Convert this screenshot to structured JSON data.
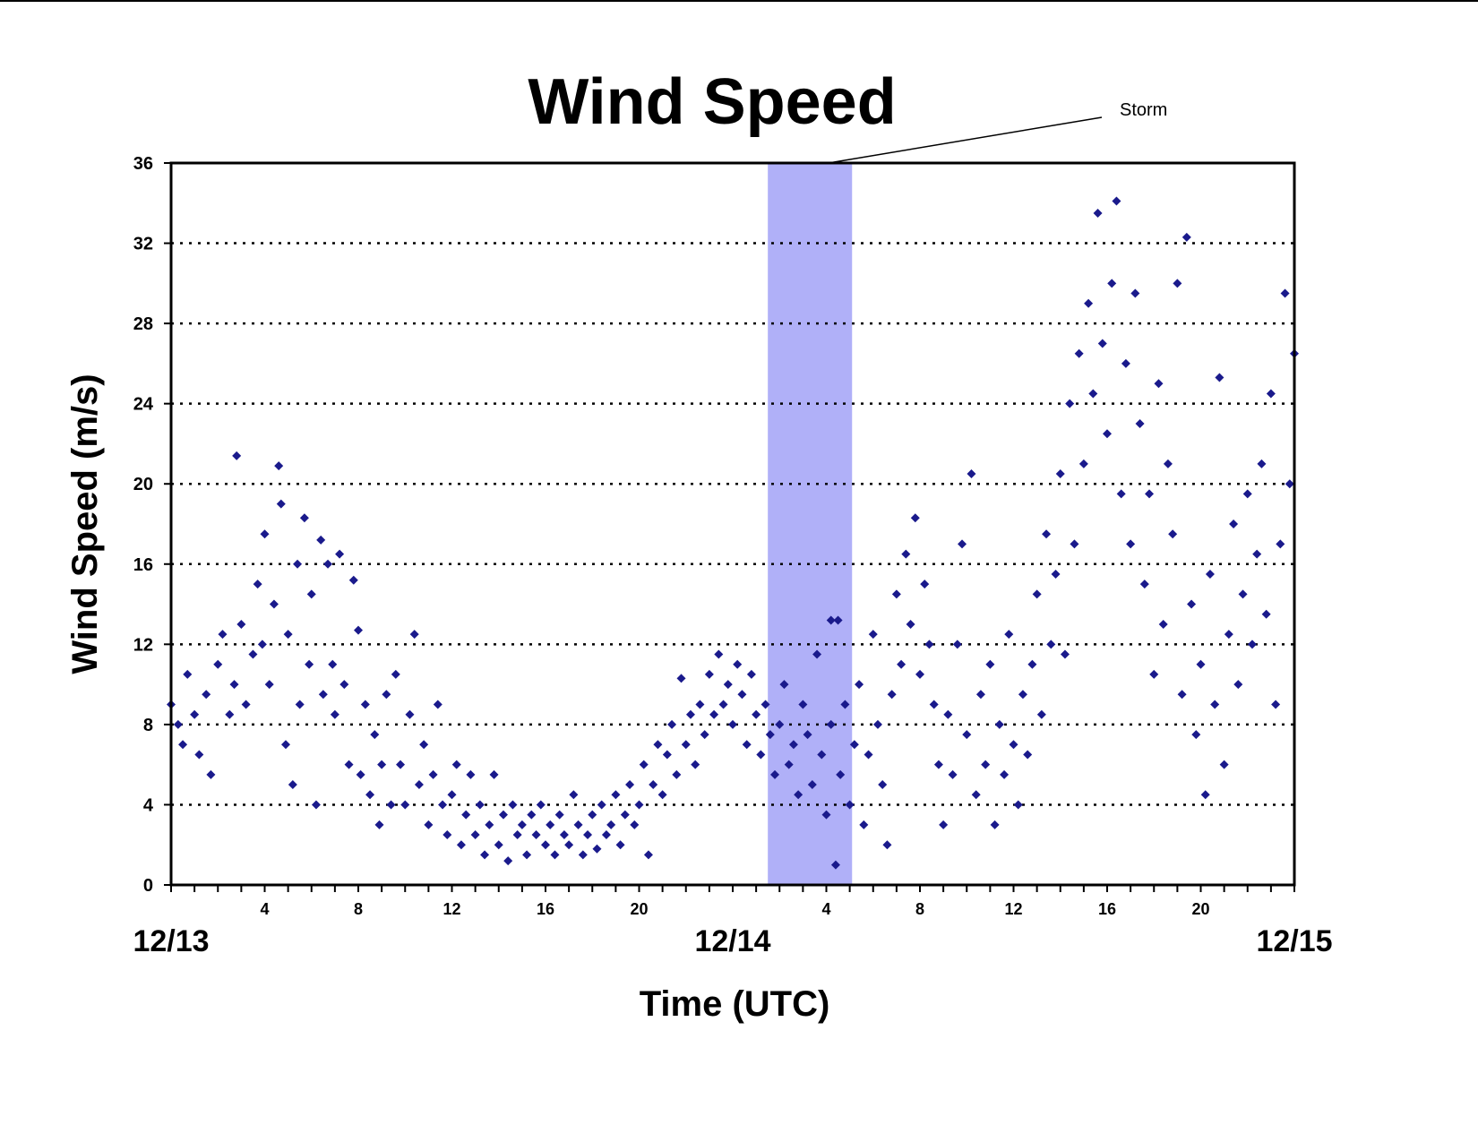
{
  "chart_data": {
    "type": "scatter",
    "title": "Wind Speed",
    "xlabel": "Time (UTC)",
    "ylabel": "Wind Speed (m/s)",
    "ylim": [
      0,
      36
    ],
    "yticks": [
      0,
      4,
      8,
      12,
      16,
      20,
      24,
      28,
      32,
      36
    ],
    "xlim_hours": [
      0,
      48
    ],
    "hour_ticks": [
      {
        "hour": 4,
        "label": "4"
      },
      {
        "hour": 8,
        "label": "8"
      },
      {
        "hour": 12,
        "label": "12"
      },
      {
        "hour": 16,
        "label": "16"
      },
      {
        "hour": 20,
        "label": "20"
      },
      {
        "hour": 28,
        "label": "4"
      },
      {
        "hour": 32,
        "label": "8"
      },
      {
        "hour": 36,
        "label": "12"
      },
      {
        "hour": 40,
        "label": "16"
      },
      {
        "hour": 44,
        "label": "20"
      }
    ],
    "date_labels": [
      {
        "hour": 0,
        "label": "12/13"
      },
      {
        "hour": 24,
        "label": "12/14"
      },
      {
        "hour": 48,
        "label": "12/15"
      }
    ],
    "grid": "horizontal dotted",
    "marker_color": "#1a1a8c",
    "annotation": {
      "text": "Storm",
      "span_hours": [
        25.5,
        29.1
      ],
      "color": "#b0b0f8"
    },
    "series": [
      {
        "x_unit": "hours since 12/13 00:00 UTC",
        "points": [
          [
            0.0,
            9.0
          ],
          [
            0.3,
            8.0
          ],
          [
            0.5,
            7.0
          ],
          [
            0.7,
            10.5
          ],
          [
            1.0,
            8.5
          ],
          [
            1.2,
            6.5
          ],
          [
            1.5,
            9.5
          ],
          [
            1.7,
            5.5
          ],
          [
            2.0,
            11.0
          ],
          [
            2.2,
            12.5
          ],
          [
            2.5,
            8.5
          ],
          [
            2.7,
            10.0
          ],
          [
            2.8,
            21.4
          ],
          [
            3.0,
            13.0
          ],
          [
            3.2,
            9.0
          ],
          [
            3.5,
            11.5
          ],
          [
            3.7,
            15.0
          ],
          [
            3.9,
            12.0
          ],
          [
            4.0,
            17.5
          ],
          [
            4.2,
            10.0
          ],
          [
            4.4,
            14.0
          ],
          [
            4.6,
            20.9
          ],
          [
            4.7,
            19.0
          ],
          [
            4.9,
            7.0
          ],
          [
            5.0,
            12.5
          ],
          [
            5.2,
            5.0
          ],
          [
            5.4,
            16.0
          ],
          [
            5.5,
            9.0
          ],
          [
            5.7,
            18.3
          ],
          [
            5.9,
            11.0
          ],
          [
            6.0,
            14.5
          ],
          [
            6.2,
            4.0
          ],
          [
            6.4,
            17.2
          ],
          [
            6.5,
            9.5
          ],
          [
            6.7,
            16.0
          ],
          [
            6.9,
            11.0
          ],
          [
            7.0,
            8.5
          ],
          [
            7.2,
            16.5
          ],
          [
            7.4,
            10.0
          ],
          [
            7.6,
            6.0
          ],
          [
            7.8,
            15.2
          ],
          [
            8.0,
            12.7
          ],
          [
            8.1,
            5.5
          ],
          [
            8.3,
            9.0
          ],
          [
            8.5,
            4.5
          ],
          [
            8.7,
            7.5
          ],
          [
            8.9,
            3.0
          ],
          [
            9.0,
            6.0
          ],
          [
            9.2,
            9.5
          ],
          [
            9.4,
            4.0
          ],
          [
            9.6,
            10.5
          ],
          [
            9.8,
            6.0
          ],
          [
            10.0,
            4.0
          ],
          [
            10.2,
            8.5
          ],
          [
            10.4,
            12.5
          ],
          [
            10.6,
            5.0
          ],
          [
            10.8,
            7.0
          ],
          [
            11.0,
            3.0
          ],
          [
            11.2,
            5.5
          ],
          [
            11.4,
            9.0
          ],
          [
            11.6,
            4.0
          ],
          [
            11.8,
            2.5
          ],
          [
            12.0,
            4.5
          ],
          [
            12.2,
            6.0
          ],
          [
            12.4,
            2.0
          ],
          [
            12.6,
            3.5
          ],
          [
            12.8,
            5.5
          ],
          [
            13.0,
            2.5
          ],
          [
            13.2,
            4.0
          ],
          [
            13.4,
            1.5
          ],
          [
            13.6,
            3.0
          ],
          [
            13.8,
            5.5
          ],
          [
            14.0,
            2.0
          ],
          [
            14.2,
            3.5
          ],
          [
            14.4,
            1.2
          ],
          [
            14.6,
            4.0
          ],
          [
            14.8,
            2.5
          ],
          [
            15.0,
            3.0
          ],
          [
            15.2,
            1.5
          ],
          [
            15.4,
            3.5
          ],
          [
            15.6,
            2.5
          ],
          [
            15.8,
            4.0
          ],
          [
            16.0,
            2.0
          ],
          [
            16.2,
            3.0
          ],
          [
            16.4,
            1.5
          ],
          [
            16.6,
            3.5
          ],
          [
            16.8,
            2.5
          ],
          [
            17.0,
            2.0
          ],
          [
            17.2,
            4.5
          ],
          [
            17.4,
            3.0
          ],
          [
            17.6,
            1.5
          ],
          [
            17.8,
            2.5
          ],
          [
            18.0,
            3.5
          ],
          [
            18.2,
            1.8
          ],
          [
            18.4,
            4.0
          ],
          [
            18.6,
            2.5
          ],
          [
            18.8,
            3.0
          ],
          [
            19.0,
            4.5
          ],
          [
            19.2,
            2.0
          ],
          [
            19.4,
            3.5
          ],
          [
            19.6,
            5.0
          ],
          [
            19.8,
            3.0
          ],
          [
            20.0,
            4.0
          ],
          [
            20.2,
            6.0
          ],
          [
            20.4,
            1.5
          ],
          [
            20.6,
            5.0
          ],
          [
            20.8,
            7.0
          ],
          [
            21.0,
            4.5
          ],
          [
            21.2,
            6.5
          ],
          [
            21.4,
            8.0
          ],
          [
            21.6,
            5.5
          ],
          [
            21.8,
            10.3
          ],
          [
            22.0,
            7.0
          ],
          [
            22.2,
            8.5
          ],
          [
            22.4,
            6.0
          ],
          [
            22.6,
            9.0
          ],
          [
            22.8,
            7.5
          ],
          [
            23.0,
            10.5
          ],
          [
            23.2,
            8.5
          ],
          [
            23.4,
            11.5
          ],
          [
            23.6,
            9.0
          ],
          [
            23.8,
            10.0
          ],
          [
            24.0,
            8.0
          ],
          [
            24.2,
            11.0
          ],
          [
            24.4,
            9.5
          ],
          [
            24.6,
            7.0
          ],
          [
            24.8,
            10.5
          ],
          [
            25.0,
            8.5
          ],
          [
            25.2,
            6.5
          ],
          [
            25.4,
            9.0
          ],
          [
            25.6,
            7.5
          ],
          [
            25.8,
            5.5
          ],
          [
            26.0,
            8.0
          ],
          [
            26.2,
            10.0
          ],
          [
            26.4,
            6.0
          ],
          [
            26.6,
            7.0
          ],
          [
            26.8,
            4.5
          ],
          [
            27.0,
            9.0
          ],
          [
            27.2,
            7.5
          ],
          [
            27.4,
            5.0
          ],
          [
            27.6,
            11.5
          ],
          [
            27.8,
            6.5
          ],
          [
            28.0,
            3.5
          ],
          [
            28.2,
            8.0
          ],
          [
            28.2,
            13.2
          ],
          [
            28.5,
            13.2
          ],
          [
            28.4,
            1.0
          ],
          [
            28.6,
            5.5
          ],
          [
            28.8,
            9.0
          ],
          [
            29.0,
            4.0
          ],
          [
            29.2,
            7.0
          ],
          [
            29.4,
            10.0
          ],
          [
            29.6,
            3.0
          ],
          [
            29.8,
            6.5
          ],
          [
            30.0,
            12.5
          ],
          [
            30.2,
            8.0
          ],
          [
            30.4,
            5.0
          ],
          [
            30.6,
            2.0
          ],
          [
            30.8,
            9.5
          ],
          [
            31.0,
            14.5
          ],
          [
            31.2,
            11.0
          ],
          [
            31.4,
            16.5
          ],
          [
            31.6,
            13.0
          ],
          [
            31.8,
            18.3
          ],
          [
            32.0,
            10.5
          ],
          [
            32.2,
            15.0
          ],
          [
            32.4,
            12.0
          ],
          [
            32.6,
            9.0
          ],
          [
            32.8,
            6.0
          ],
          [
            33.0,
            3.0
          ],
          [
            33.2,
            8.5
          ],
          [
            33.4,
            5.5
          ],
          [
            33.6,
            12.0
          ],
          [
            33.8,
            17.0
          ],
          [
            34.0,
            7.5
          ],
          [
            34.2,
            20.5
          ],
          [
            34.4,
            4.5
          ],
          [
            34.6,
            9.5
          ],
          [
            34.8,
            6.0
          ],
          [
            35.0,
            11.0
          ],
          [
            35.2,
            3.0
          ],
          [
            35.4,
            8.0
          ],
          [
            35.6,
            5.5
          ],
          [
            35.8,
            12.5
          ],
          [
            36.0,
            7.0
          ],
          [
            36.2,
            4.0
          ],
          [
            36.4,
            9.5
          ],
          [
            36.6,
            6.5
          ],
          [
            36.8,
            11.0
          ],
          [
            37.0,
            14.5
          ],
          [
            37.2,
            8.5
          ],
          [
            37.4,
            17.5
          ],
          [
            37.6,
            12.0
          ],
          [
            37.8,
            15.5
          ],
          [
            38.0,
            20.5
          ],
          [
            38.2,
            11.5
          ],
          [
            38.4,
            24.0
          ],
          [
            38.6,
            17.0
          ],
          [
            38.8,
            26.5
          ],
          [
            39.0,
            21.0
          ],
          [
            39.2,
            29.0
          ],
          [
            39.4,
            24.5
          ],
          [
            39.6,
            33.5
          ],
          [
            39.8,
            27.0
          ],
          [
            40.0,
            22.5
          ],
          [
            40.2,
            30.0
          ],
          [
            40.4,
            34.1
          ],
          [
            40.6,
            19.5
          ],
          [
            40.8,
            26.0
          ],
          [
            41.0,
            17.0
          ],
          [
            41.2,
            29.5
          ],
          [
            41.4,
            23.0
          ],
          [
            41.6,
            15.0
          ],
          [
            41.8,
            19.5
          ],
          [
            42.0,
            10.5
          ],
          [
            42.2,
            25.0
          ],
          [
            42.4,
            13.0
          ],
          [
            42.6,
            21.0
          ],
          [
            42.8,
            17.5
          ],
          [
            43.0,
            30.0
          ],
          [
            43.2,
            9.5
          ],
          [
            43.4,
            32.3
          ],
          [
            43.6,
            14.0
          ],
          [
            43.8,
            7.5
          ],
          [
            44.0,
            11.0
          ],
          [
            44.2,
            4.5
          ],
          [
            44.4,
            15.5
          ],
          [
            44.6,
            9.0
          ],
          [
            44.8,
            25.3
          ],
          [
            45.0,
            6.0
          ],
          [
            45.2,
            12.5
          ],
          [
            45.4,
            18.0
          ],
          [
            45.6,
            10.0
          ],
          [
            45.8,
            14.5
          ],
          [
            46.0,
            19.5
          ],
          [
            46.2,
            12.0
          ],
          [
            46.4,
            16.5
          ],
          [
            46.6,
            21.0
          ],
          [
            46.8,
            13.5
          ],
          [
            47.0,
            24.5
          ],
          [
            47.2,
            9.0
          ],
          [
            47.4,
            17.0
          ],
          [
            47.6,
            29.5
          ],
          [
            47.8,
            20.0
          ],
          [
            48.0,
            26.5
          ]
        ]
      }
    ]
  }
}
